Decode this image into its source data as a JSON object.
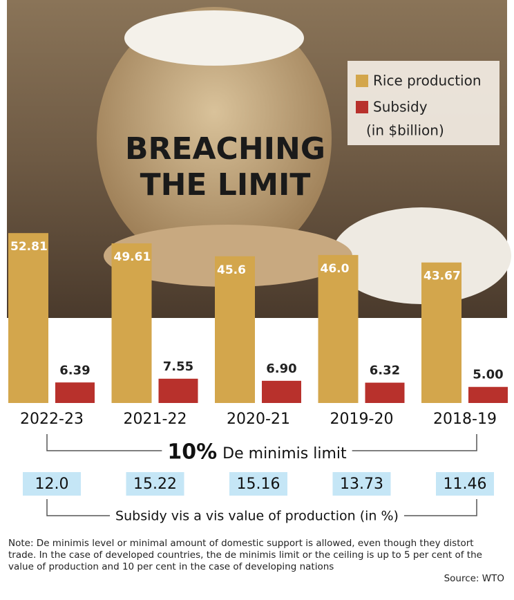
{
  "chart_data": {
    "type": "bar",
    "title": [
      "BREACHING",
      "THE LIMIT"
    ],
    "categories": [
      "2022-23",
      "2021-22",
      "2020-21",
      "2019-20",
      "2018-19"
    ],
    "series": [
      {
        "name": "Rice production",
        "color": "#d3a64c",
        "values": [
          52.81,
          49.61,
          45.6,
          46.0,
          43.67
        ],
        "value_labels": [
          "52.81",
          "49.61",
          "45.6",
          "46.0",
          "43.67"
        ]
      },
      {
        "name": "Subsidy",
        "color": "#b8312c",
        "values": [
          6.39,
          7.55,
          6.9,
          6.32,
          5.0
        ],
        "value_labels": [
          "6.39",
          "7.55",
          "6.90",
          "6.32",
          "5.00"
        ]
      }
    ],
    "legend_unit": "(in $billion)",
    "ylim": [
      0,
      55
    ],
    "de_minimis": {
      "value_text": "10%",
      "label": "De minimis limit"
    },
    "ratio": {
      "label": "Subsidy vis a vis value of production (in %)",
      "values": [
        12.0,
        15.22,
        15.16,
        13.73,
        11.46
      ],
      "value_labels": [
        "12.0",
        "15.22",
        "15.16",
        "13.73",
        "11.46"
      ]
    },
    "note": "Note: De minimis level or minimal amount of domestic support is allowed, even though they distort trade. In the case of developed countries, the de minimis limit or the ceiling is up to 5 per cent of the value of production and 10 per cent in the case of developing nations",
    "source": "Source: WTO"
  }
}
